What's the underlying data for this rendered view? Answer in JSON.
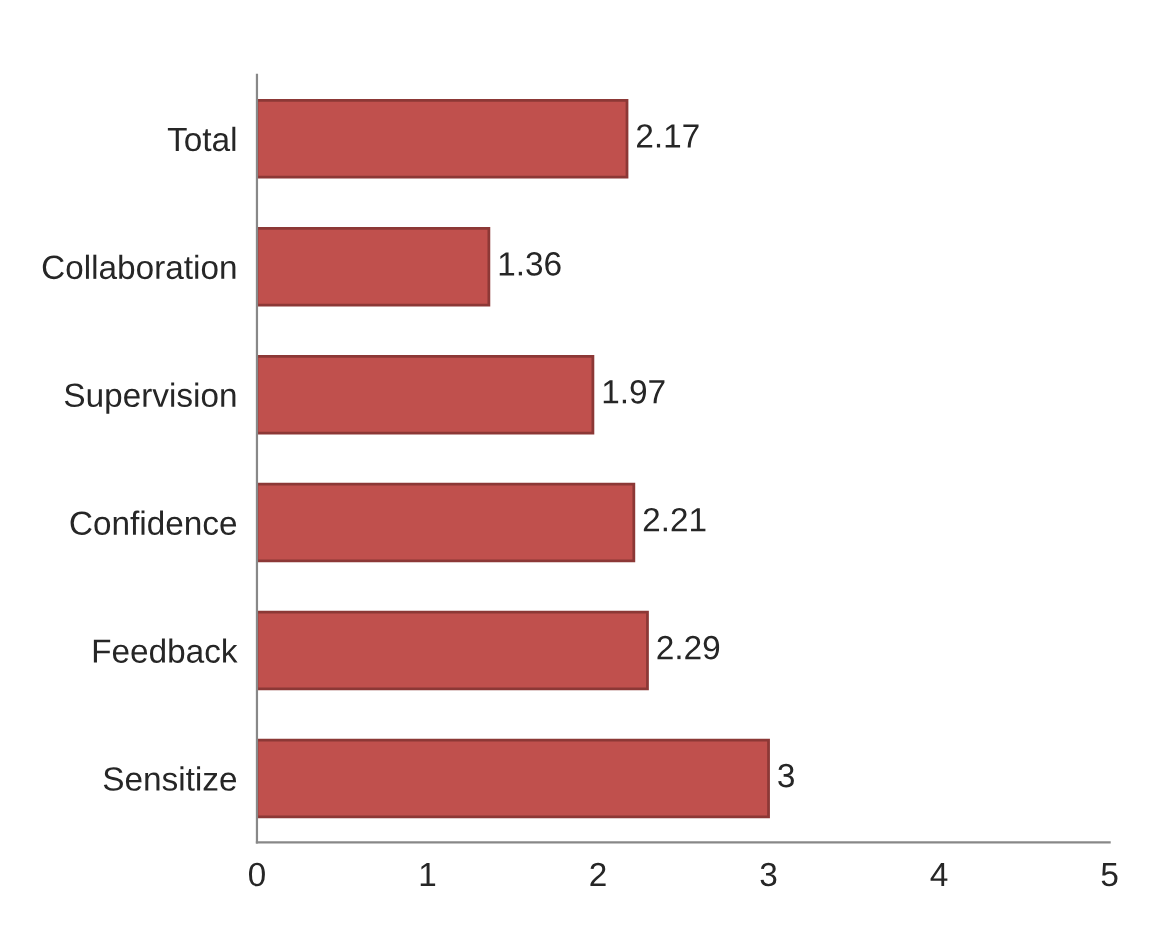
{
  "chart_data": {
    "type": "bar",
    "orientation": "horizontal",
    "categories": [
      "Total",
      "Collaboration",
      "Supervision",
      "Confidence",
      "Feedback",
      "Sensitize"
    ],
    "values": [
      2.17,
      1.36,
      1.97,
      2.21,
      2.29,
      3
    ],
    "color": "#c0504d",
    "xlim": [
      0,
      5
    ],
    "xticks": [
      0,
      1,
      2,
      3,
      4,
      5
    ],
    "data_labels": true,
    "grid": false,
    "legend": false
  }
}
